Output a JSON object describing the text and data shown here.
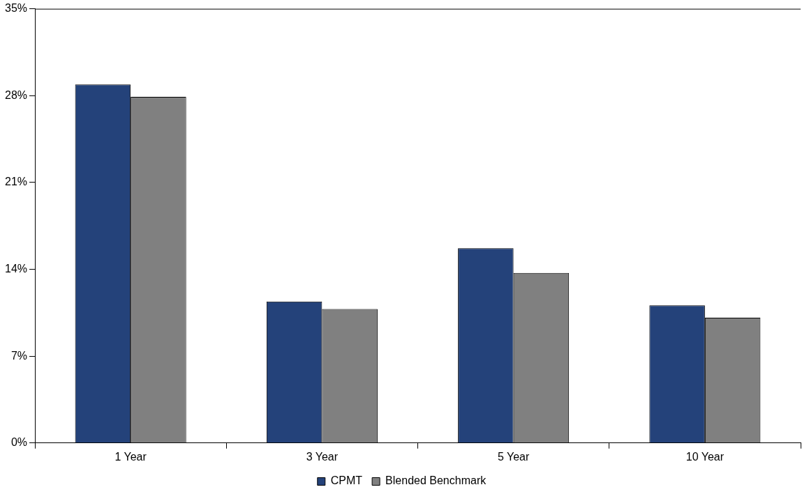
{
  "chart_data": {
    "type": "bar",
    "categories": [
      "1 Year",
      "3 Year",
      "5 Year",
      "10 Year"
    ],
    "series": [
      {
        "name": "CPMT",
        "color": "#24427a",
        "values": [
          28.9,
          11.4,
          15.7,
          11.1
        ]
      },
      {
        "name": "Blended Benchmark",
        "color": "#808080",
        "values": [
          27.9,
          10.8,
          13.7,
          10.1
        ]
      }
    ],
    "ylim": [
      0,
      35
    ],
    "yticks": [
      {
        "value": 0,
        "label": "0%"
      },
      {
        "value": 7,
        "label": "7%"
      },
      {
        "value": 14,
        "label": "14%"
      },
      {
        "value": 21,
        "label": "21%"
      },
      {
        "value": 28,
        "label": "28%"
      },
      {
        "value": 35,
        "label": "35%"
      }
    ],
    "grid": false,
    "legend": "bottom"
  }
}
